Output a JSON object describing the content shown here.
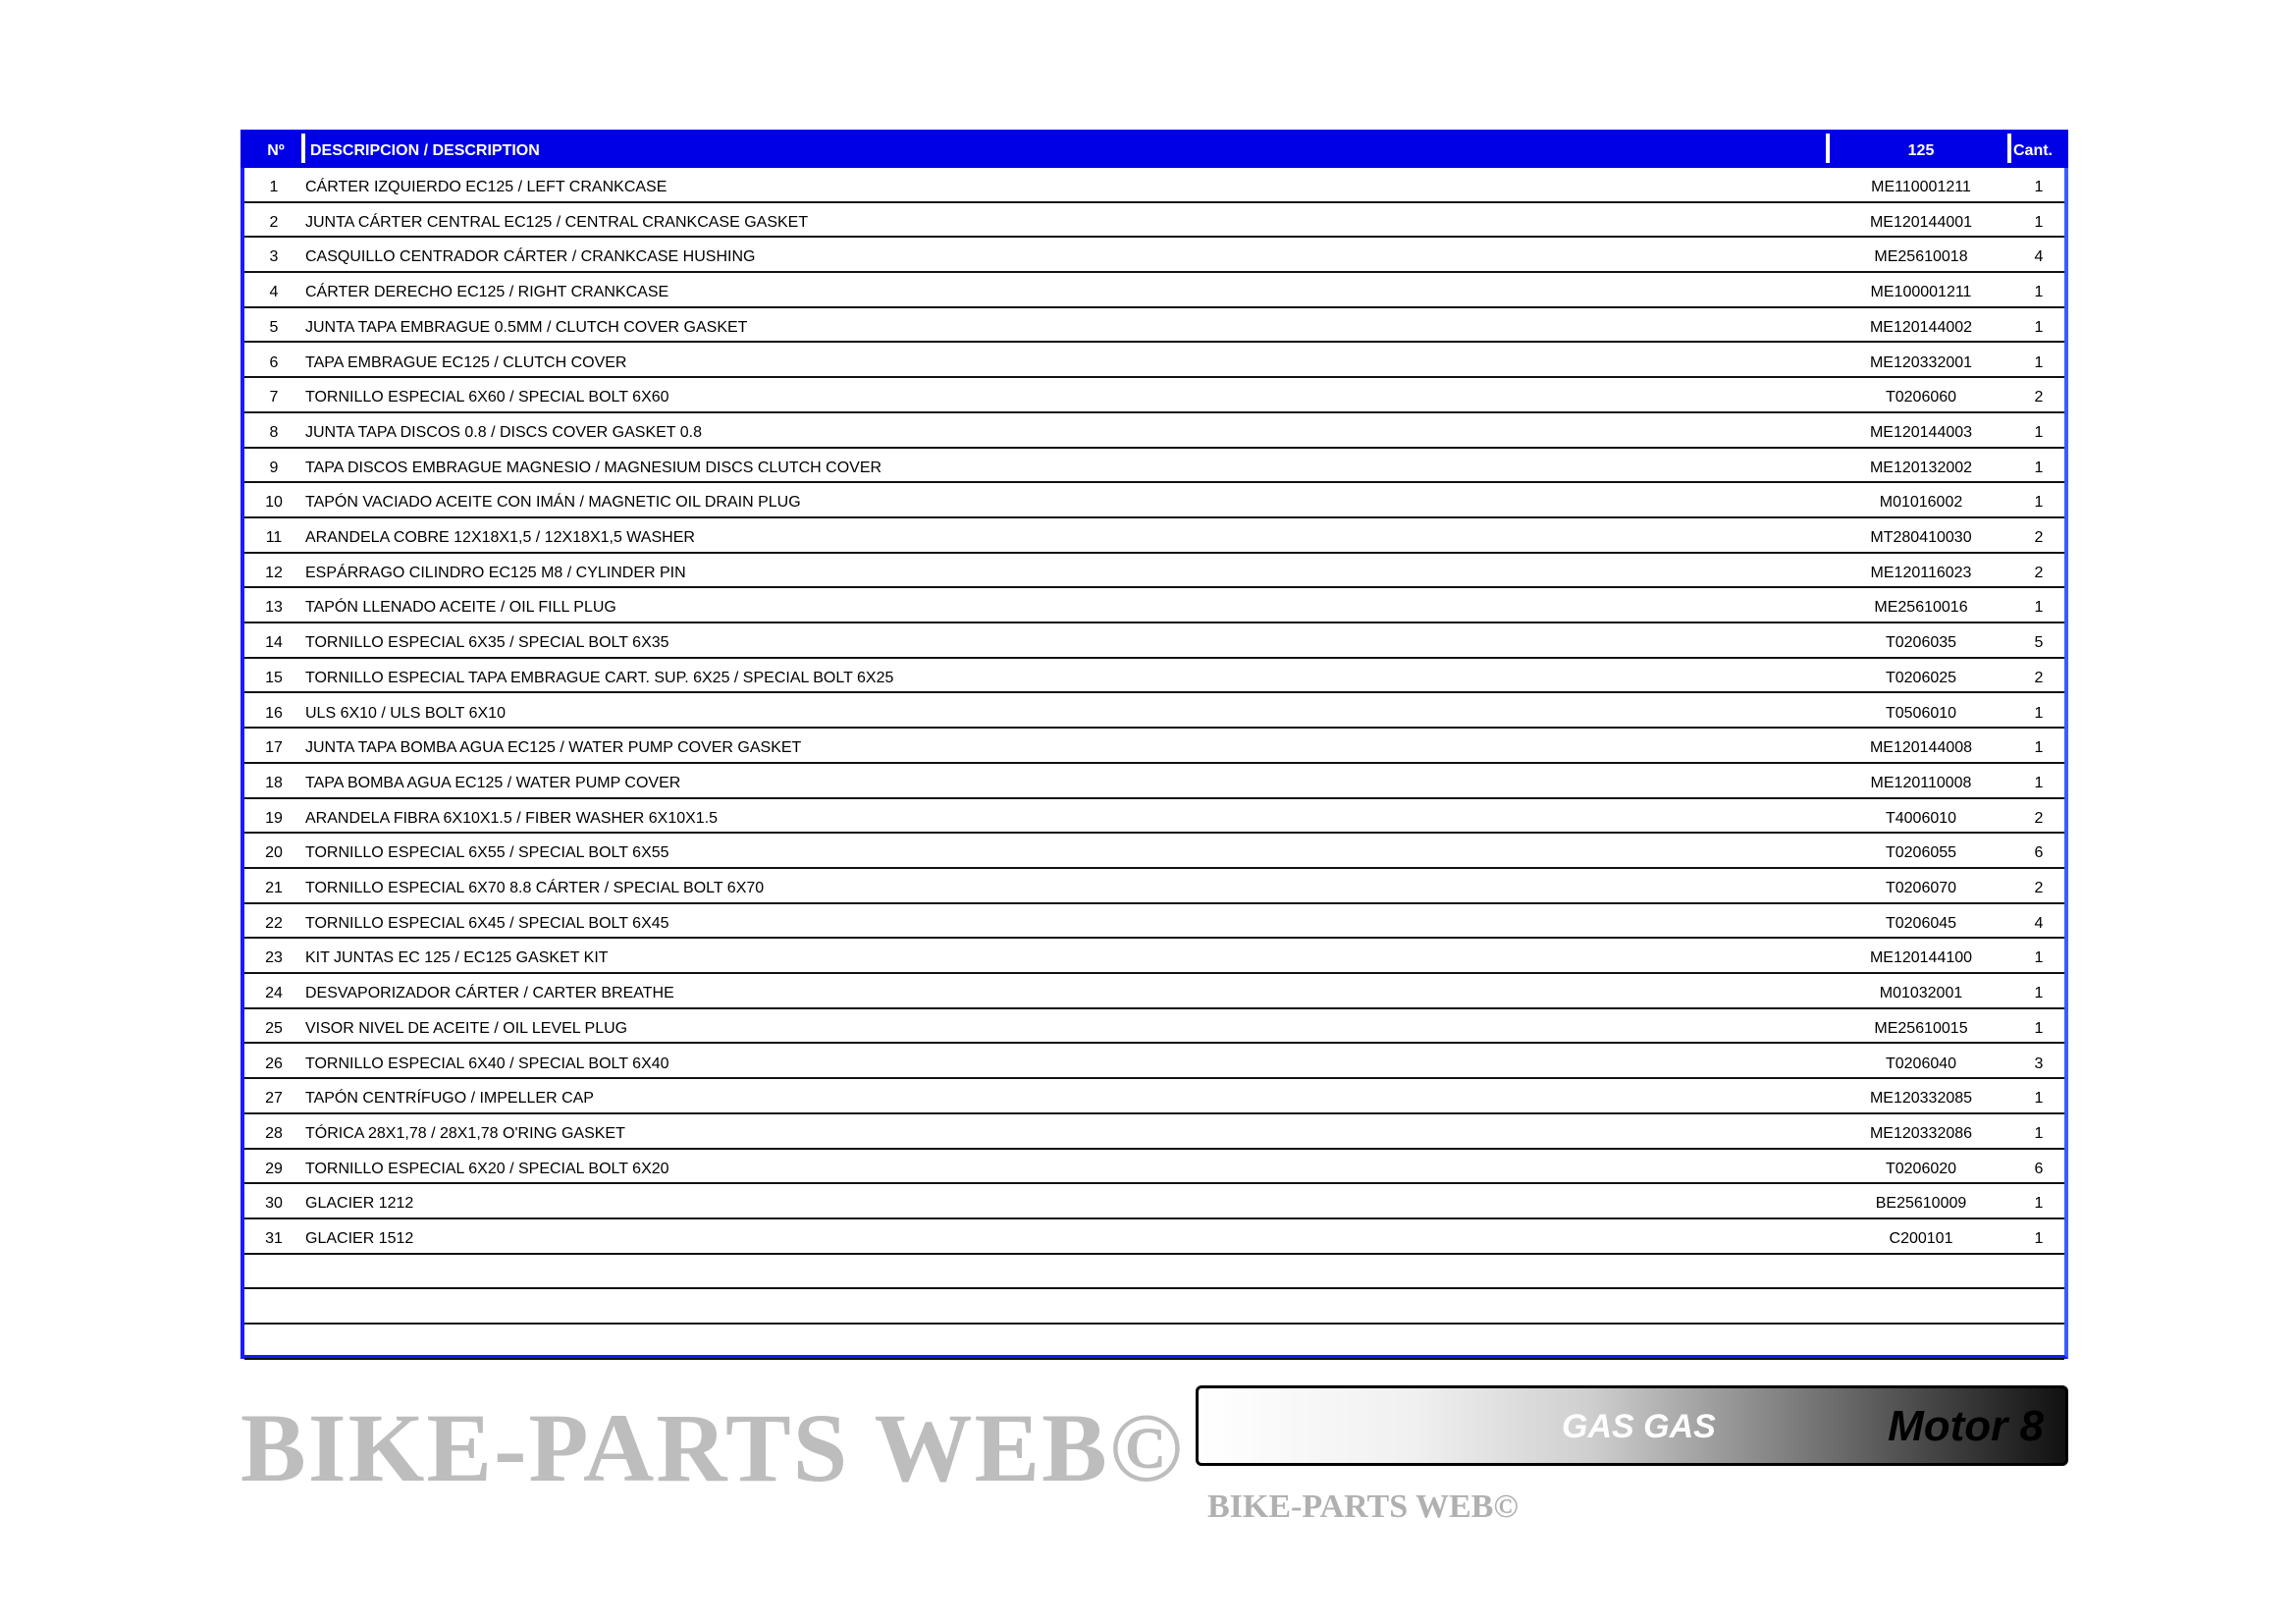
{
  "header": {
    "no": "Nº",
    "description": "DESCRIPCION / DESCRIPTION",
    "model": "125",
    "qty": "Cant."
  },
  "rows": [
    {
      "no": "1",
      "description": "CÁRTER IZQUIERDO EC125 / LEFT CRANKCASE",
      "code": "ME110001211",
      "qty": "1"
    },
    {
      "no": "2",
      "description": "JUNTA CÁRTER CENTRAL EC125 / CENTRAL CRANKCASE GASKET",
      "code": "ME120144001",
      "qty": "1"
    },
    {
      "no": "3",
      "description": "CASQUILLO CENTRADOR CÁRTER / CRANKCASE HUSHING",
      "code": "ME25610018",
      "qty": "4"
    },
    {
      "no": "4",
      "description": "CÁRTER DERECHO EC125 / RIGHT CRANKCASE",
      "code": "ME100001211",
      "qty": "1"
    },
    {
      "no": "5",
      "description": "JUNTA TAPA EMBRAGUE 0.5MM / CLUTCH COVER GASKET",
      "code": "ME120144002",
      "qty": "1"
    },
    {
      "no": "6",
      "description": "TAPA EMBRAGUE EC125 / CLUTCH COVER",
      "code": "ME120332001",
      "qty": "1"
    },
    {
      "no": "7",
      "description": "TORNILLO ESPECIAL  6X60 / SPECIAL BOLT 6X60",
      "code": "T0206060",
      "qty": "2"
    },
    {
      "no": "8",
      "description": "JUNTA TAPA DISCOS 0.8 / DISCS COVER GASKET 0.8",
      "code": "ME120144003",
      "qty": "1"
    },
    {
      "no": "9",
      "description": "TAPA DISCOS EMBRAGUE MAGNESIO / MAGNESIUM DISCS CLUTCH COVER",
      "code": "ME120132002",
      "qty": "1"
    },
    {
      "no": "10",
      "description": "TAPÓN VACIADO ACEITE CON IMÁN / MAGNETIC OIL DRAIN PLUG",
      "code": "M01016002",
      "qty": "1"
    },
    {
      "no": "11",
      "description": "ARANDELA COBRE 12X18X1,5 / 12X18X1,5 WASHER",
      "code": "MT280410030",
      "qty": "2"
    },
    {
      "no": "12",
      "description": "ESPÁRRAGO CILINDRO EC125 M8 / CYLINDER PIN",
      "code": "ME120116023",
      "qty": "2"
    },
    {
      "no": "13",
      "description": "TAPÓN LLENADO ACEITE / OIL FILL PLUG",
      "code": "ME25610016",
      "qty": "1"
    },
    {
      "no": "14",
      "description": "TORNILLO ESPECIAL  6X35 / SPECIAL BOLT 6X35",
      "code": "T0206035",
      "qty": "5"
    },
    {
      "no": "15",
      "description": "TORNILLO ESPECIAL TAPA EMBRAGUE CART. SUP.  6X25 / SPECIAL BOLT 6X25",
      "code": "T0206025",
      "qty": "2"
    },
    {
      "no": "16",
      "description": "ULS 6X10 / ULS BOLT 6X10",
      "code": "T0506010",
      "qty": "1"
    },
    {
      "no": "17",
      "description": "JUNTA TAPA BOMBA AGUA EC125 / WATER PUMP COVER GASKET",
      "code": "ME120144008",
      "qty": "1"
    },
    {
      "no": "18",
      "description": "TAPA BOMBA AGUA EC125 / WATER PUMP COVER",
      "code": "ME120110008",
      "qty": "1"
    },
    {
      "no": "19",
      "description": "ARANDELA FIBRA 6X10X1.5 / FIBER WASHER 6X10X1.5",
      "code": "T4006010",
      "qty": "2"
    },
    {
      "no": "20",
      "description": "TORNILLO ESPECIAL  6X55 / SPECIAL BOLT 6X55",
      "code": "T0206055",
      "qty": "6"
    },
    {
      "no": "21",
      "description": "TORNILLO ESPECIAL 6X70 8.8 CÁRTER / SPECIAL BOLT 6X70",
      "code": "T0206070",
      "qty": "2"
    },
    {
      "no": "22",
      "description": "TORNILLO ESPECIAL  6X45 / SPECIAL BOLT 6X45",
      "code": "T0206045",
      "qty": "4"
    },
    {
      "no": "23",
      "description": "KIT JUNTAS EC 125 / EC125 GASKET KIT",
      "code": "ME120144100",
      "qty": "1"
    },
    {
      "no": "24",
      "description": "DESVAPORIZADOR CÁRTER / CARTER BREATHE",
      "code": "M01032001",
      "qty": "1"
    },
    {
      "no": "25",
      "description": "VISOR NIVEL DE ACEITE / OIL LEVEL PLUG",
      "code": "ME25610015",
      "qty": "1"
    },
    {
      "no": "26",
      "description": "TORNILLO ESPECIAL  6X40 / SPECIAL BOLT 6X40",
      "code": "T0206040",
      "qty": "3"
    },
    {
      "no": "27",
      "description": "TAPÓN CENTRÍFUGO / IMPELLER CAP",
      "code": "ME120332085",
      "qty": "1"
    },
    {
      "no": "28",
      "description": "TÓRICA 28X1,78 / 28X1,78 O'RING GASKET",
      "code": "ME120332086",
      "qty": "1"
    },
    {
      "no": "29",
      "description": "TORNILLO ESPECIAL  6X20 / SPECIAL BOLT 6X20",
      "code": "T0206020",
      "qty": "6"
    },
    {
      "no": "30",
      "description": "GLACIER 1212",
      "code": "BE25610009",
      "qty": "1"
    },
    {
      "no": "31",
      "description": "GLACIER 1512",
      "code": "C200101",
      "qty": "1"
    },
    {
      "no": "",
      "description": "",
      "code": "",
      "qty": ""
    },
    {
      "no": "",
      "description": "",
      "code": "",
      "qty": ""
    },
    {
      "no": "",
      "description": "",
      "code": "",
      "qty": ""
    }
  ],
  "footer": {
    "brand": "GAS GAS",
    "section": "Motor 8"
  },
  "watermark": "BIKE-PARTS WEB©",
  "colors": {
    "header_bg": "#0000e6",
    "border": "#1a1aff"
  }
}
